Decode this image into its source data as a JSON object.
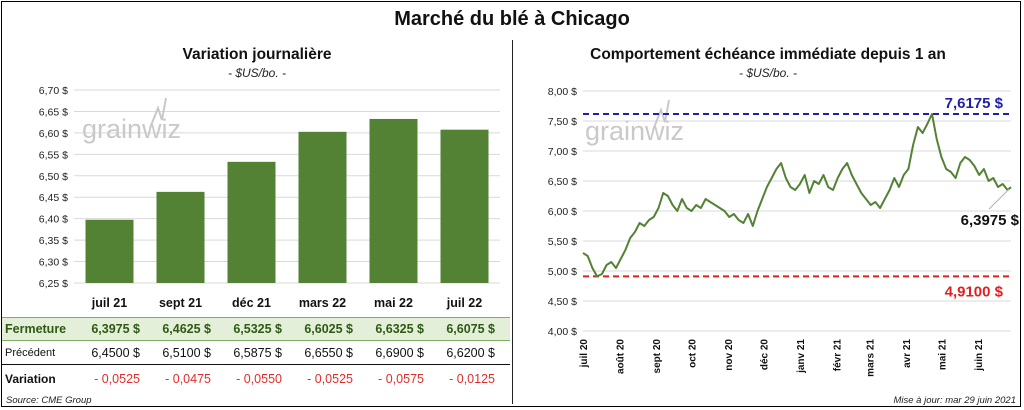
{
  "title": "Marché du blé à Chicago",
  "left": {
    "title": "Variation  journalière",
    "unit": "- $US/bo. -",
    "watermark": "grainwiz",
    "bar_color": "#548235"
  },
  "right": {
    "title": "Comportement  échéance immédiate depuis 1 an",
    "unit": "- $US/bo. -",
    "watermark": "grainwiz",
    "line_color": "#548235",
    "max_label": "7,6175 $",
    "min_label": "4,9100 $",
    "last_label": "6,3975 $",
    "max_color": "#1f1fa8",
    "min_color": "#e11f1f"
  },
  "table": {
    "rows": [
      {
        "label": "Fermeture",
        "values": [
          "6,3975  $",
          "6,4625  $",
          "6,5325  $",
          "6,6025  $",
          "6,6325  $",
          "6,6075  $"
        ]
      },
      {
        "label": "Précédent",
        "values": [
          "6,4500  $",
          "6,5100  $",
          "6,5875  $",
          "6,6550  $",
          "6,6900  $",
          "6,6200  $"
        ]
      },
      {
        "label": "Variation",
        "values": [
          "- 0,0525",
          "- 0,0475",
          "- 0,0550",
          "- 0,0525",
          "- 0,0575",
          "- 0,0125"
        ]
      }
    ]
  },
  "footer": {
    "source": "Source: CME Group",
    "updated": "Mise à jour: mar 29 juin 2021"
  },
  "chart_data": [
    {
      "type": "bar",
      "title": "Variation  journalière",
      "ylabel": "$US/bo.",
      "categories": [
        "juil 21",
        "sept 21",
        "déc 21",
        "mars 22",
        "mai 22",
        "juil 22"
      ],
      "values": [
        6.3975,
        6.4625,
        6.5325,
        6.6025,
        6.6325,
        6.6075
      ],
      "ylim": [
        6.25,
        6.7
      ],
      "yticks": [
        "6,25 $",
        "6,30 $",
        "6,35 $",
        "6,40 $",
        "6,45 $",
        "6,50 $",
        "6,55 $",
        "6,60 $",
        "6,65 $",
        "6,70 $"
      ],
      "grid": true
    },
    {
      "type": "line",
      "title": "Comportement  échéance immédiate depuis 1 an",
      "ylabel": "$US/bo.",
      "ylim": [
        4.0,
        8.0
      ],
      "yticks": [
        "4,00 $",
        "4,50 $",
        "5,00 $",
        "5,50 $",
        "6,00 $",
        "6,50 $",
        "7,00 $",
        "7,50 $",
        "8,00 $"
      ],
      "xticks": [
        "juil 20",
        "août 20",
        "sept 20",
        "oct 20",
        "nov 20",
        "déc 20",
        "janv 21",
        "févr 21",
        "mars 21",
        "avr 21",
        "mai 21",
        "juin 21"
      ],
      "max_line": 7.6175,
      "min_line": 4.91,
      "x": [
        "2020-07-01",
        "2020-07-05",
        "2020-07-09",
        "2020-07-13",
        "2020-07-17",
        "2020-07-21",
        "2020-07-25",
        "2020-07-29",
        "2020-08-02",
        "2020-08-06",
        "2020-08-10",
        "2020-08-14",
        "2020-08-18",
        "2020-08-22",
        "2020-08-26",
        "2020-08-30",
        "2020-09-03",
        "2020-09-07",
        "2020-09-11",
        "2020-09-15",
        "2020-09-19",
        "2020-09-23",
        "2020-09-27",
        "2020-10-01",
        "2020-10-05",
        "2020-10-09",
        "2020-10-13",
        "2020-10-17",
        "2020-10-21",
        "2020-10-25",
        "2020-10-29",
        "2020-11-02",
        "2020-11-06",
        "2020-11-10",
        "2020-11-14",
        "2020-11-18",
        "2020-11-22",
        "2020-11-26",
        "2020-11-30",
        "2020-12-04",
        "2020-12-08",
        "2020-12-12",
        "2020-12-16",
        "2020-12-20",
        "2020-12-24",
        "2020-12-28",
        "2021-01-01",
        "2021-01-05",
        "2021-01-09",
        "2021-01-13",
        "2021-01-17",
        "2021-01-21",
        "2021-01-25",
        "2021-01-29",
        "2021-02-02",
        "2021-02-06",
        "2021-02-10",
        "2021-02-14",
        "2021-02-18",
        "2021-02-22",
        "2021-02-26",
        "2021-03-02",
        "2021-03-06",
        "2021-03-10",
        "2021-03-14",
        "2021-03-18",
        "2021-03-22",
        "2021-03-26",
        "2021-03-30",
        "2021-04-03",
        "2021-04-07",
        "2021-04-11",
        "2021-04-15",
        "2021-04-19",
        "2021-04-23",
        "2021-04-27",
        "2021-05-01",
        "2021-05-05",
        "2021-05-09",
        "2021-05-13",
        "2021-05-17",
        "2021-05-21",
        "2021-05-25",
        "2021-05-29",
        "2021-06-02",
        "2021-06-06",
        "2021-06-10",
        "2021-06-14",
        "2021-06-18",
        "2021-06-22",
        "2021-06-26",
        "2021-06-29"
      ],
      "y": [
        5.3,
        5.25,
        5.05,
        4.91,
        4.95,
        5.1,
        5.15,
        5.05,
        5.2,
        5.35,
        5.55,
        5.65,
        5.8,
        5.75,
        5.85,
        5.9,
        6.05,
        6.3,
        6.25,
        6.1,
        6.0,
        6.2,
        6.05,
        6.0,
        6.1,
        6.05,
        6.2,
        6.15,
        6.1,
        6.05,
        6.0,
        5.9,
        5.95,
        5.85,
        5.8,
        5.95,
        5.75,
        6.0,
        6.2,
        6.4,
        6.55,
        6.7,
        6.8,
        6.55,
        6.4,
        6.35,
        6.45,
        6.6,
        6.3,
        6.5,
        6.45,
        6.6,
        6.4,
        6.35,
        6.55,
        6.7,
        6.8,
        6.6,
        6.45,
        6.3,
        6.2,
        6.1,
        6.15,
        6.05,
        6.2,
        6.35,
        6.55,
        6.4,
        6.6,
        6.7,
        7.1,
        7.4,
        7.3,
        7.45,
        7.6175,
        7.2,
        6.9,
        6.7,
        6.65,
        6.55,
        6.8,
        6.9,
        6.85,
        6.75,
        6.6,
        6.7,
        6.5,
        6.55,
        6.4,
        6.45,
        6.35,
        6.3975
      ]
    }
  ]
}
